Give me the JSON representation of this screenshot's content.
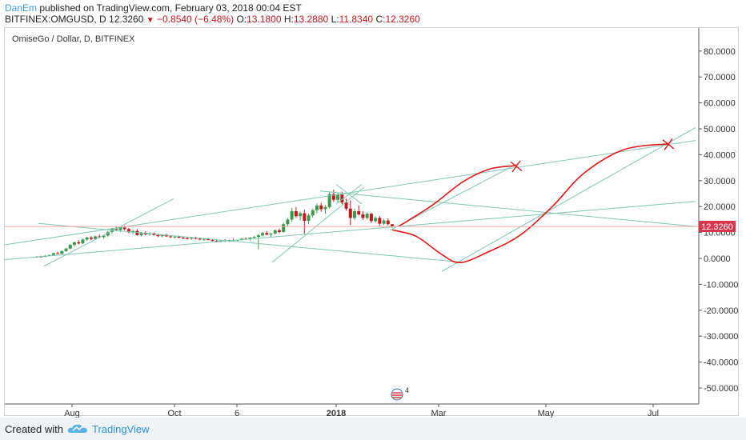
{
  "header": {
    "author": "DanEm",
    "published_text": "published on TradingView.com, February 03, 2018 00:04 EST",
    "symbol": "BITFINEX:OMGUSD, D",
    "last": "12.3260",
    "change": "−0.8540 (−6.48%)",
    "o_label": "O:",
    "o_value": "13.1800",
    "h_label": "H:",
    "h_value": "13.2880",
    "l_label": "L:",
    "l_value": "11.8340",
    "c_label": "C:",
    "c_value": "12.3260"
  },
  "chart_title": "OmiseGo / Dollar, D, BITFINEX",
  "price_label": "12.3260",
  "event_badge": "4",
  "footer": {
    "created_with": "Created with",
    "brand": "TradingView"
  },
  "colors": {
    "candle_up": "#3a9a4a",
    "candle_down": "#c0161c",
    "trendline": "#7fc7b3",
    "drawing": "#e01818",
    "price_line": "#f0a8a8",
    "price_label_bg": "#d9364c"
  },
  "chart_data": {
    "type": "candlestick",
    "y_axis": {
      "min": -55,
      "max": 88,
      "ticks": [
        80,
        70,
        60,
        50,
        40,
        30,
        20,
        10,
        0,
        -10,
        -20,
        -30,
        -40,
        -50
      ],
      "tick_labels": [
        "80.0000",
        "70.0000",
        "60.0000",
        "50.0000",
        "40.0000",
        "30.0000",
        "20.0000",
        "10.0000",
        "0.0000",
        "-10.0000",
        "-20.0000",
        "-30.0000",
        "-40.0000",
        "-50.0000"
      ]
    },
    "x_axis": {
      "tick_labels": [
        "Aug",
        "Oct",
        "6",
        "2018",
        "Mar",
        "May",
        "Jul"
      ]
    },
    "last_price": 12.326,
    "candles": [
      {
        "o": 0.5,
        "h": 0.9,
        "l": 0.3,
        "c": 0.7
      },
      {
        "o": 0.7,
        "h": 1.0,
        "l": 0.5,
        "c": 0.6
      },
      {
        "o": 0.6,
        "h": 1.2,
        "l": 0.5,
        "c": 1.0
      },
      {
        "o": 1.0,
        "h": 1.5,
        "l": 0.8,
        "c": 1.3
      },
      {
        "o": 1.3,
        "h": 2.2,
        "l": 1.1,
        "c": 2.0
      },
      {
        "o": 2.0,
        "h": 2.6,
        "l": 1.7,
        "c": 1.8
      },
      {
        "o": 1.8,
        "h": 3.0,
        "l": 1.6,
        "c": 2.8
      },
      {
        "o": 2.8,
        "h": 4.0,
        "l": 2.5,
        "c": 3.8
      },
      {
        "o": 3.8,
        "h": 5.5,
        "l": 3.5,
        "c": 5.2
      },
      {
        "o": 5.2,
        "h": 6.5,
        "l": 4.6,
        "c": 6.2
      },
      {
        "o": 6.2,
        "h": 7.0,
        "l": 5.4,
        "c": 5.8
      },
      {
        "o": 5.8,
        "h": 7.6,
        "l": 5.5,
        "c": 7.3
      },
      {
        "o": 7.3,
        "h": 8.4,
        "l": 6.8,
        "c": 8.0
      },
      {
        "o": 8.0,
        "h": 8.6,
        "l": 7.0,
        "c": 7.5
      },
      {
        "o": 7.5,
        "h": 8.8,
        "l": 7.2,
        "c": 8.5
      },
      {
        "o": 8.5,
        "h": 9.2,
        "l": 7.8,
        "c": 8.2
      },
      {
        "o": 8.2,
        "h": 9.0,
        "l": 7.6,
        "c": 8.8
      },
      {
        "o": 8.8,
        "h": 10.5,
        "l": 8.4,
        "c": 10.2
      },
      {
        "o": 10.2,
        "h": 11.8,
        "l": 9.6,
        "c": 11.4
      },
      {
        "o": 11.4,
        "h": 12.5,
        "l": 10.6,
        "c": 11.0
      },
      {
        "o": 11.0,
        "h": 12.2,
        "l": 10.2,
        "c": 11.9
      },
      {
        "o": 11.9,
        "h": 12.6,
        "l": 10.8,
        "c": 11.3
      },
      {
        "o": 11.3,
        "h": 11.8,
        "l": 9.8,
        "c": 10.1
      },
      {
        "o": 10.1,
        "h": 11.0,
        "l": 9.4,
        "c": 10.6
      },
      {
        "o": 10.6,
        "h": 11.3,
        "l": 8.7,
        "c": 9.0
      },
      {
        "o": 9.0,
        "h": 10.2,
        "l": 8.5,
        "c": 9.8
      },
      {
        "o": 9.8,
        "h": 10.4,
        "l": 8.9,
        "c": 9.3
      },
      {
        "o": 9.3,
        "h": 10.1,
        "l": 8.7,
        "c": 9.7
      },
      {
        "o": 9.7,
        "h": 10.0,
        "l": 8.8,
        "c": 9.0
      },
      {
        "o": 9.0,
        "h": 9.6,
        "l": 8.2,
        "c": 8.6
      },
      {
        "o": 8.6,
        "h": 9.3,
        "l": 8.1,
        "c": 9.1
      },
      {
        "o": 9.1,
        "h": 9.5,
        "l": 8.3,
        "c": 8.5
      },
      {
        "o": 8.5,
        "h": 9.0,
        "l": 7.9,
        "c": 8.2
      },
      {
        "o": 8.2,
        "h": 8.7,
        "l": 7.7,
        "c": 8.4
      },
      {
        "o": 8.4,
        "h": 8.8,
        "l": 7.8,
        "c": 8.0
      },
      {
        "o": 8.0,
        "h": 8.4,
        "l": 7.5,
        "c": 7.8
      },
      {
        "o": 7.8,
        "h": 8.2,
        "l": 7.3,
        "c": 7.6
      },
      {
        "o": 7.6,
        "h": 8.3,
        "l": 7.2,
        "c": 8.0
      },
      {
        "o": 8.0,
        "h": 8.4,
        "l": 7.4,
        "c": 7.6
      },
      {
        "o": 7.6,
        "h": 8.0,
        "l": 7.0,
        "c": 7.3
      },
      {
        "o": 7.3,
        "h": 7.8,
        "l": 6.8,
        "c": 7.5
      },
      {
        "o": 7.5,
        "h": 7.9,
        "l": 6.9,
        "c": 7.1
      },
      {
        "o": 7.1,
        "h": 7.5,
        "l": 6.5,
        "c": 6.8
      },
      {
        "o": 6.8,
        "h": 7.2,
        "l": 6.3,
        "c": 6.6
      },
      {
        "o": 6.6,
        "h": 7.1,
        "l": 6.2,
        "c": 6.9
      },
      {
        "o": 6.9,
        "h": 7.4,
        "l": 6.4,
        "c": 6.7
      },
      {
        "o": 6.7,
        "h": 7.3,
        "l": 6.3,
        "c": 7.1
      },
      {
        "o": 7.1,
        "h": 7.6,
        "l": 6.6,
        "c": 6.9
      },
      {
        "o": 6.9,
        "h": 7.3,
        "l": 6.5,
        "c": 7.2
      },
      {
        "o": 7.2,
        "h": 7.9,
        "l": 6.8,
        "c": 7.6
      },
      {
        "o": 7.6,
        "h": 8.1,
        "l": 7.1,
        "c": 7.4
      },
      {
        "o": 7.4,
        "h": 8.2,
        "l": 7.0,
        "c": 8.0
      },
      {
        "o": 8.0,
        "h": 8.6,
        "l": 7.5,
        "c": 8.3
      },
      {
        "o": 8.3,
        "h": 9.4,
        "l": 3.5,
        "c": 8.9
      },
      {
        "o": 8.9,
        "h": 10.2,
        "l": 8.4,
        "c": 9.8
      },
      {
        "o": 9.8,
        "h": 10.6,
        "l": 8.9,
        "c": 9.2
      },
      {
        "o": 9.2,
        "h": 9.8,
        "l": 8.3,
        "c": 9.6
      },
      {
        "o": 9.6,
        "h": 11.2,
        "l": 9.2,
        "c": 10.8
      },
      {
        "o": 10.8,
        "h": 11.6,
        "l": 9.7,
        "c": 10.2
      },
      {
        "o": 10.2,
        "h": 13.8,
        "l": 9.9,
        "c": 13.2
      },
      {
        "o": 13.2,
        "h": 15.6,
        "l": 12.4,
        "c": 15.0
      },
      {
        "o": 15.0,
        "h": 19.5,
        "l": 14.2,
        "c": 18.2
      },
      {
        "o": 18.2,
        "h": 19.8,
        "l": 15.6,
        "c": 16.3
      },
      {
        "o": 16.3,
        "h": 18.0,
        "l": 14.6,
        "c": 17.4
      },
      {
        "o": 17.4,
        "h": 18.8,
        "l": 9.5,
        "c": 14.5
      },
      {
        "o": 14.5,
        "h": 17.2,
        "l": 13.2,
        "c": 16.6
      },
      {
        "o": 16.6,
        "h": 19.2,
        "l": 15.8,
        "c": 18.6
      },
      {
        "o": 18.6,
        "h": 21.2,
        "l": 17.4,
        "c": 20.4
      },
      {
        "o": 20.4,
        "h": 21.5,
        "l": 18.0,
        "c": 19.0
      },
      {
        "o": 19.0,
        "h": 20.6,
        "l": 17.2,
        "c": 19.8
      },
      {
        "o": 19.8,
        "h": 25.8,
        "l": 19.2,
        "c": 24.8
      },
      {
        "o": 24.8,
        "h": 26.5,
        "l": 21.8,
        "c": 22.6
      },
      {
        "o": 22.6,
        "h": 25.4,
        "l": 21.4,
        "c": 24.6
      },
      {
        "o": 24.6,
        "h": 25.8,
        "l": 20.8,
        "c": 21.6
      },
      {
        "o": 21.6,
        "h": 23.0,
        "l": 18.4,
        "c": 19.2
      },
      {
        "o": 19.2,
        "h": 22.4,
        "l": 12.8,
        "c": 15.6
      },
      {
        "o": 15.6,
        "h": 19.2,
        "l": 14.8,
        "c": 18.2
      },
      {
        "o": 18.2,
        "h": 20.4,
        "l": 16.6,
        "c": 17.0
      },
      {
        "o": 17.0,
        "h": 18.2,
        "l": 14.8,
        "c": 15.6
      },
      {
        "o": 15.6,
        "h": 17.8,
        "l": 15.0,
        "c": 17.2
      },
      {
        "o": 17.2,
        "h": 17.6,
        "l": 13.6,
        "c": 14.4
      },
      {
        "o": 14.4,
        "h": 16.2,
        "l": 13.8,
        "c": 15.6
      },
      {
        "o": 15.6,
        "h": 16.4,
        "l": 12.6,
        "c": 13.4
      },
      {
        "o": 13.4,
        "h": 15.2,
        "l": 12.9,
        "c": 14.6
      },
      {
        "o": 14.6,
        "h": 15.4,
        "l": 12.8,
        "c": 13.2
      },
      {
        "o": 13.18,
        "h": 13.288,
        "l": 11.834,
        "c": 12.326
      }
    ],
    "annotations": {
      "lines": [
        {
          "x1": 5,
          "y1": -0.5,
          "x2": 869,
          "y2": 22.0
        },
        {
          "x1": 5,
          "y1": 5.2,
          "x2": 869,
          "y2": 45.5
        },
        {
          "x1": 48,
          "y1": 13.5,
          "x2": 578,
          "y2": -1.5
        },
        {
          "x1": 55,
          "y1": -3.0,
          "x2": 217,
          "y2": 23.0
        },
        {
          "x1": 340,
          "y1": -1.5,
          "x2": 455,
          "y2": 27.5
        },
        {
          "x1": 400,
          "y1": 26.0,
          "x2": 869,
          "y2": 12.3
        },
        {
          "x1": 487,
          "y1": 10.8,
          "x2": 648,
          "y2": 36.8
        },
        {
          "x1": 552,
          "y1": -5.0,
          "x2": 869,
          "y2": 50.5
        },
        {
          "x1": 420,
          "y1": 28.5,
          "x2": 452,
          "y2": 21.0
        },
        {
          "x1": 420,
          "y1": 21.0,
          "x2": 452,
          "y2": 28.5
        }
      ],
      "projection_path": [
        {
          "x": 490,
          "y": 11.0
        },
        {
          "x": 520,
          "y": 8.5
        },
        {
          "x": 552,
          "y": 1.5
        },
        {
          "x": 575,
          "y": -1.6
        },
        {
          "x": 610,
          "y": 2.5
        },
        {
          "x": 650,
          "y": 9.0
        },
        {
          "x": 690,
          "y": 20.0
        },
        {
          "x": 730,
          "y": 33.0
        },
        {
          "x": 780,
          "y": 42.0
        },
        {
          "x": 835,
          "y": 44.2
        }
      ],
      "target_path": [
        {
          "x": 498,
          "y": 12.3
        },
        {
          "x": 540,
          "y": 20.5
        },
        {
          "x": 578,
          "y": 29.5
        },
        {
          "x": 612,
          "y": 34.5
        },
        {
          "x": 645,
          "y": 35.8
        }
      ],
      "x_marks": [
        {
          "x": 645,
          "y": 35.5
        },
        {
          "x": 835,
          "y": 44.0
        }
      ]
    }
  }
}
